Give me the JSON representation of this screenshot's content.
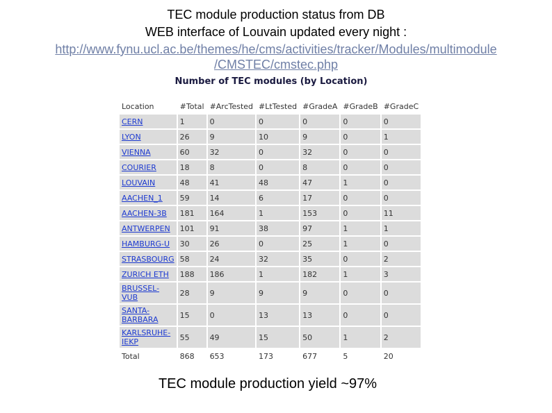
{
  "header": {
    "lines": [
      "TEC module production status from DB",
      "WEB interface of Louvain updated every night :"
    ],
    "url": [
      "http://www.fynu.ucl.ac.be/themes/he/cms/activities/tracker/Modules/multimodule",
      "/CMSTEC/cmstec.php"
    ]
  },
  "table": {
    "title": "Number of TEC modules (by Location)",
    "columns": [
      "Location",
      "#Total",
      "#ArcTested",
      "#LtTested",
      "#GradeA",
      "#GradeB",
      "#GradeC"
    ],
    "rows": [
      [
        "CERN",
        1,
        0,
        0,
        0,
        0,
        0
      ],
      [
        "LYON",
        26,
        9,
        10,
        9,
        0,
        1
      ],
      [
        "VIENNA",
        60,
        32,
        0,
        32,
        0,
        0
      ],
      [
        "COURIER",
        18,
        8,
        0,
        8,
        0,
        0
      ],
      [
        "LOUVAIN",
        48,
        41,
        48,
        47,
        1,
        0
      ],
      [
        "AACHEN_1",
        59,
        14,
        6,
        17,
        0,
        0
      ],
      [
        "AACHEN-3B",
        181,
        164,
        1,
        153,
        0,
        11
      ],
      [
        "ANTWERPEN",
        101,
        91,
        38,
        97,
        1,
        1
      ],
      [
        "HAMBURG-U",
        30,
        26,
        0,
        25,
        1,
        0
      ],
      [
        "STRASBOURG",
        58,
        24,
        32,
        35,
        0,
        2
      ],
      [
        "ZURICH ETH",
        188,
        186,
        1,
        182,
        1,
        3
      ],
      [
        "BRUSSEL-VUB",
        28,
        9,
        9,
        9,
        0,
        0
      ],
      [
        "SANTA-BARBARA",
        15,
        0,
        13,
        13,
        0,
        0
      ],
      [
        "KARLSRUHE-IEKP",
        55,
        49,
        15,
        50,
        1,
        2
      ]
    ],
    "total": [
      "Total",
      868,
      653,
      173,
      677,
      5,
      20
    ]
  },
  "footer": "TEC module production yield ~97%"
}
